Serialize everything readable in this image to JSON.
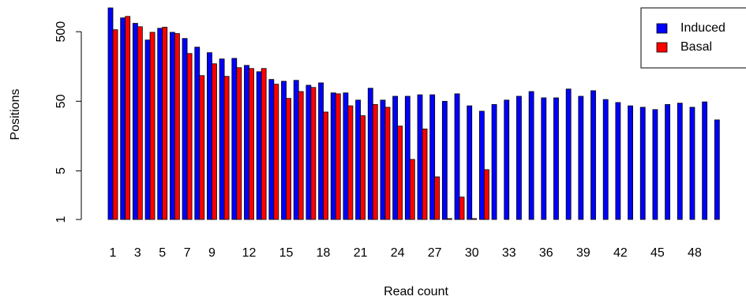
{
  "chart_data": {
    "type": "bar",
    "y_scale": "log",
    "x_label": "Read count",
    "y_label": "Positions",
    "categories": [
      1,
      null,
      3,
      null,
      5,
      null,
      7,
      null,
      9,
      null,
      null,
      12,
      null,
      null,
      15,
      null,
      null,
      18,
      null,
      null,
      21,
      null,
      null,
      24,
      null,
      null,
      27,
      null,
      null,
      30,
      null,
      null,
      33,
      null,
      null,
      36,
      null,
      null,
      39,
      null,
      null,
      42,
      null,
      null,
      45,
      null,
      null,
      48,
      null,
      null
    ],
    "series": [
      {
        "name": "Induced",
        "color": "#0000ff",
        "values": [
          1100,
          790,
          660,
          380,
          560,
          490,
          400,
          300,
          250,
          203,
          207,
          164,
          133,
          103,
          97,
          100,
          85,
          92,
          66,
          66,
          52,
          77,
          52,
          59,
          59,
          62,
          62,
          50,
          64,
          43,
          36,
          45,
          52,
          59,
          69,
          56,
          56,
          75,
          59,
          71,
          53,
          48,
          43,
          41,
          38,
          45,
          47,
          41,
          49,
          27
        ]
      },
      {
        "name": "Basal",
        "color": "#ff0000",
        "values": [
          534,
          830,
          590,
          490,
          580,
          470,
          243,
          117,
          173,
          114,
          152,
          148,
          148,
          88,
          55,
          69,
          79,
          35,
          64,
          43,
          31,
          45,
          41,
          22,
          7.3,
          20,
          4.1,
          1.03,
          2.1,
          1.03,
          5.2,
          null,
          null,
          null,
          null,
          null,
          null,
          null,
          null,
          null,
          null,
          null,
          null,
          null,
          null,
          null,
          null,
          null,
          null,
          null
        ]
      }
    ],
    "ylim": [
      1,
      1100
    ],
    "yticks": [
      1,
      5,
      50,
      500
    ],
    "legend": "top-right"
  }
}
